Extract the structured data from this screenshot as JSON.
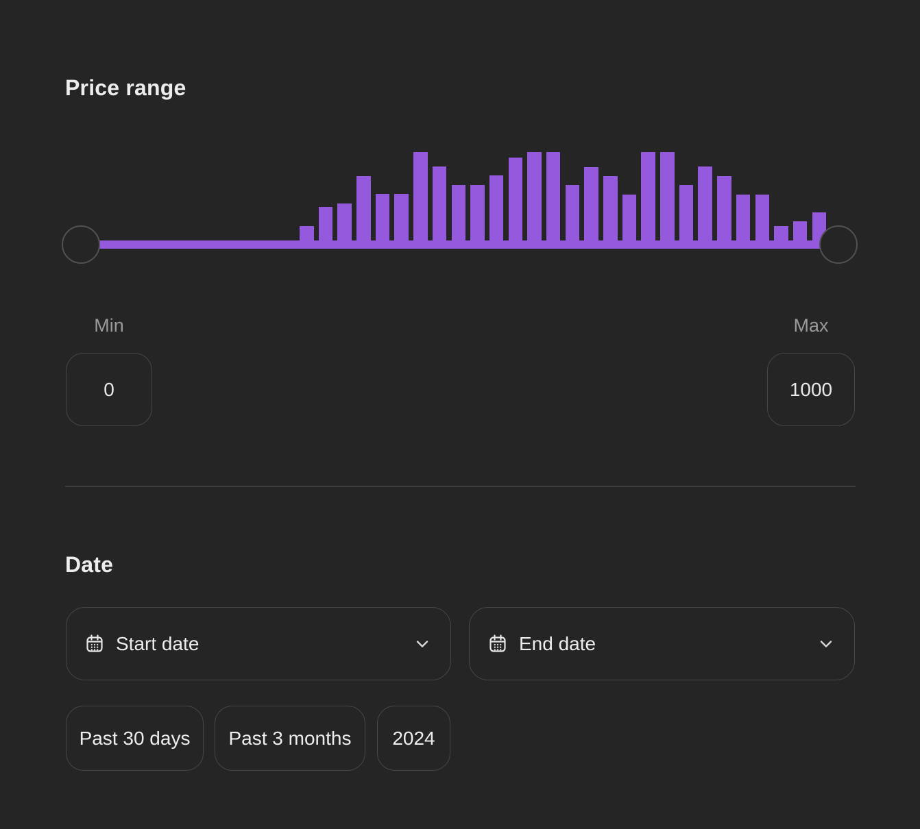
{
  "price": {
    "title": "Price range",
    "min_label": "Min",
    "max_label": "Max",
    "min_value": "0",
    "max_value": "1000"
  },
  "chart_data": {
    "type": "bar",
    "title": "Price distribution histogram (unlabeled, decorates the price range slider)",
    "xlabel": "",
    "ylabel": "",
    "x_range": [
      0,
      1000
    ],
    "bar_count": 28,
    "values": [
      22,
      50,
      55,
      95,
      69,
      69,
      130,
      109,
      82,
      82,
      96,
      122,
      130,
      130,
      82,
      108,
      95,
      68,
      130,
      130,
      82,
      109,
      95,
      68,
      68,
      22,
      29,
      42
    ],
    "value_unit": "relative bar height px, max 130",
    "accent_color": "#9559de",
    "grid": false,
    "legend": false
  },
  "slider": {
    "range_min": 0,
    "range_max": 1000,
    "selected_min": 0,
    "selected_max": 1000
  },
  "date": {
    "title": "Date",
    "start_label": "Start date",
    "end_label": "End date",
    "presets": [
      "Past 30 days",
      "Past 3 months",
      "2024"
    ],
    "icons": {
      "field_left": "calendar-icon",
      "field_right": "chevron-down-icon"
    }
  }
}
